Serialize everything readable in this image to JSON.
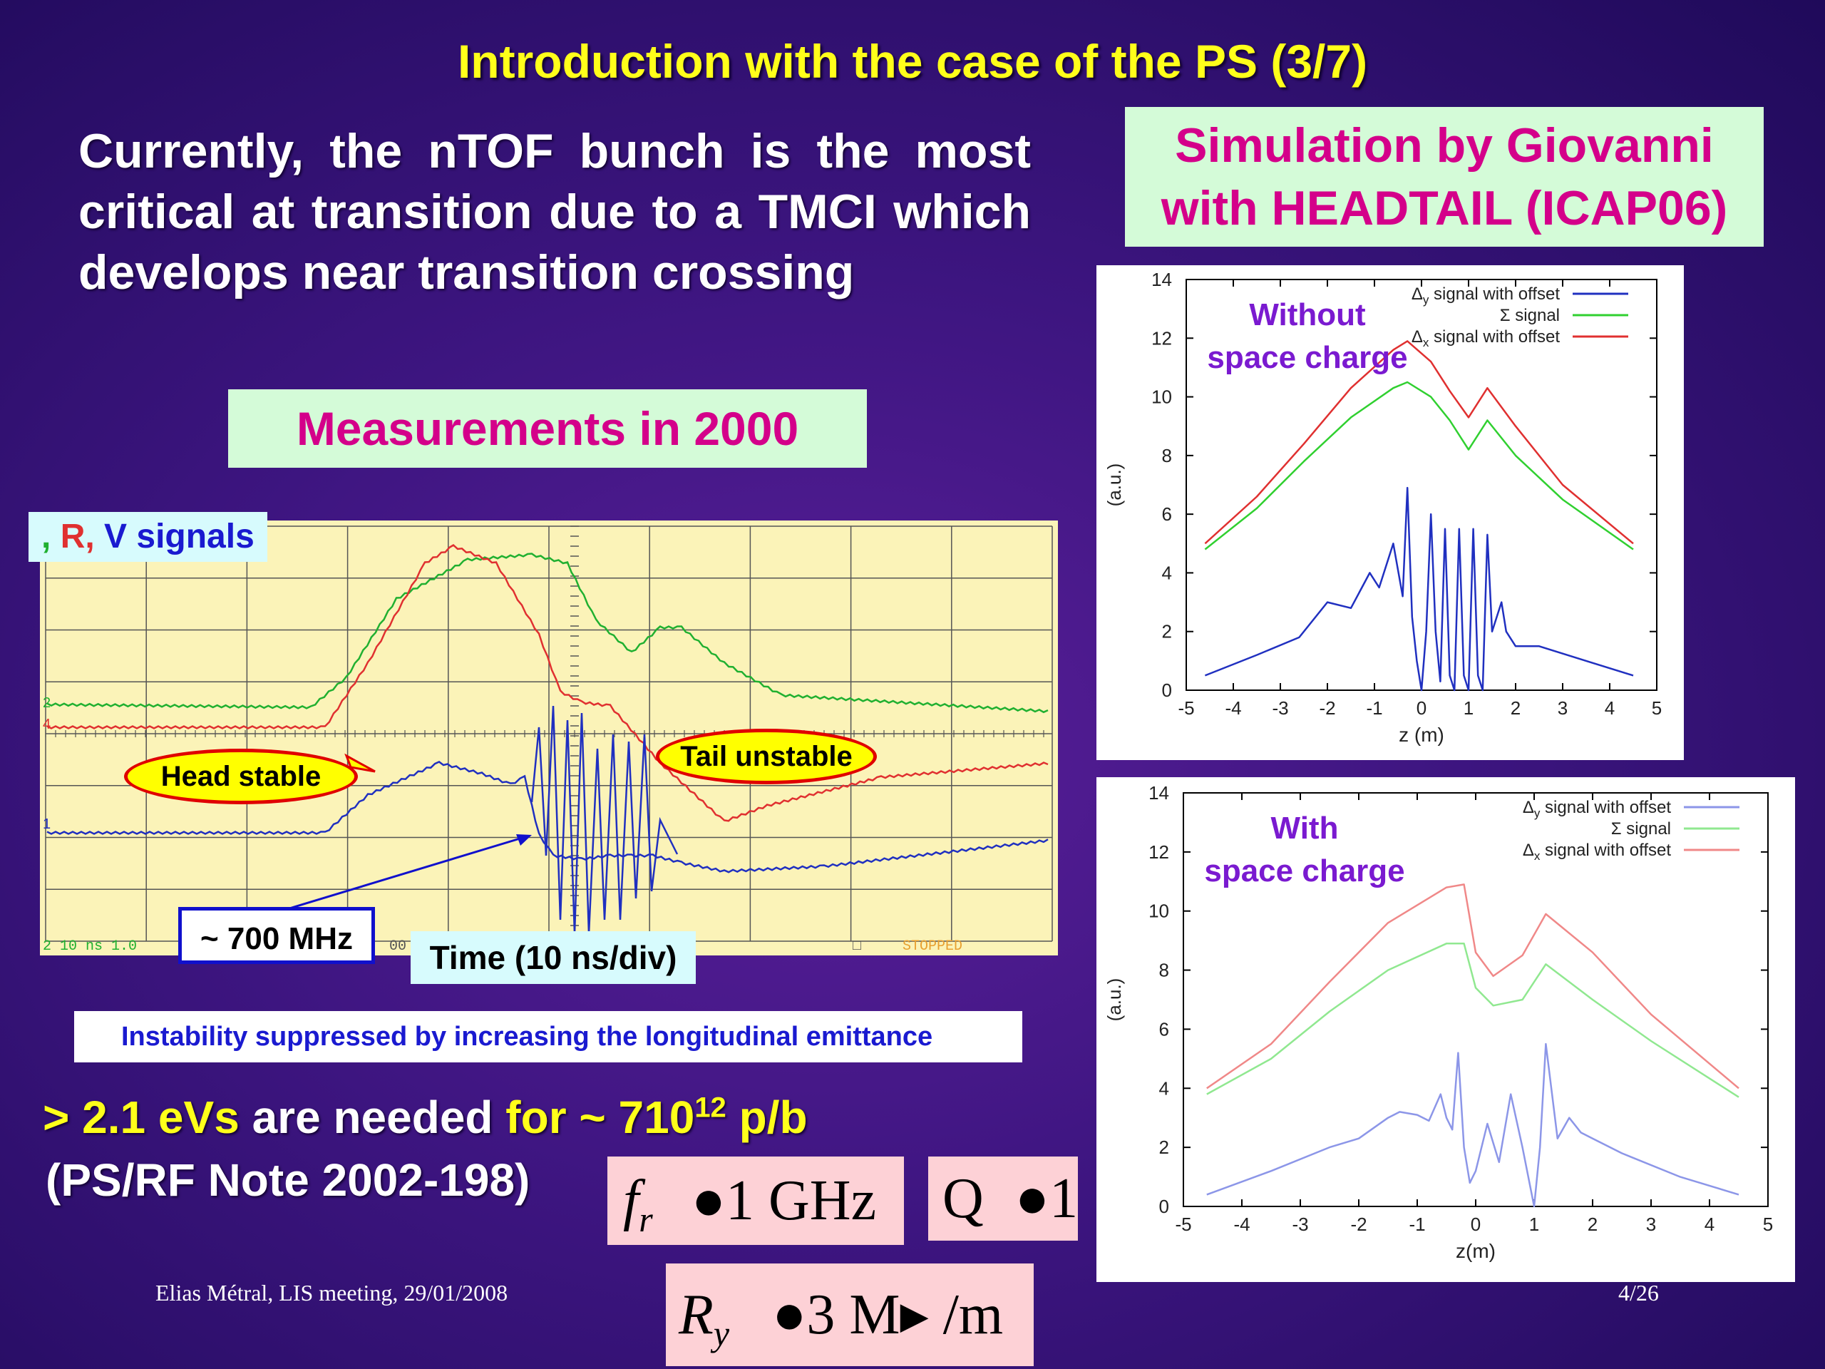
{
  "title": "Introduction with the case of the PS (3/7)",
  "intro": {
    "bullet": "",
    "text": "Currently, the nTOF bunch is the most critical at transition due to a TMCI which develops near transition crossing"
  },
  "measurements_label": "Measurements in 2000",
  "simulation_label": {
    "line1": "Simulation by Giovanni",
    "line2": "with HEADTAIL (ICAP06)"
  },
  "scope": {
    "signals_label": {
      "s1": "",
      "sep": ",",
      "s2": "",
      "r": "R,",
      "s3": "",
      "v": "V signals"
    },
    "channel_marks": {
      "ch2": "2",
      "ch4": "4",
      "ch1": "1"
    },
    "status_left": "2  10 ns  1.0",
    "status_mid": "00",
    "status_right": "STOPPED",
    "status_box": "□",
    "head_stable": "Head stable",
    "tail_unstable": "Tail unstable",
    "freq": "~ 700 MHz",
    "time": "Time (10 ns/div)",
    "colors": {
      "green": "#20b030",
      "red": "#e03030",
      "blue": "#2030c0",
      "grid": "#555555"
    }
  },
  "instability_note": {
    "bullet": "",
    "text": "Instability suppressed by increasing the longitudinal emittance"
  },
  "needed": {
    "bullet": "",
    "gt": ">",
    "value": "2.1 eVs",
    "mid": "are needed",
    "for": "for ~ 7",
    "x": "",
    "base": "10",
    "exp": "12",
    "unit": "p/b"
  },
  "reference": "(PS/RF Note 2002-198)",
  "formulas": {
    "f1": {
      "var": "f",
      "sub": "r",
      "rhs": "1 GHz"
    },
    "f2": {
      "var": "Q",
      "rhs": "1"
    },
    "f3": {
      "var": "R",
      "sub": "y",
      "rhs": "3 M",
      "unit": "/m"
    }
  },
  "footer": {
    "left": "Elias Métral, LIS meeting, 29/01/2008",
    "right": "4/26"
  },
  "chart_data": [
    {
      "type": "line",
      "overlay_label": "Without space charge",
      "overlay_lines": [
        "Without",
        "space charge"
      ],
      "xlabel": "z (m)",
      "ylabel": "(a.u.)",
      "xlim": [
        -5,
        5
      ],
      "ylim": [
        0,
        14
      ],
      "xticks": [
        "-5",
        "-4",
        "-3",
        "-2",
        "-1",
        "0",
        "1",
        "2",
        "3",
        "4",
        "5"
      ],
      "yticks": [
        "0",
        "2",
        "4",
        "6",
        "8",
        "10",
        "12",
        "14"
      ],
      "legend_position": "top-right",
      "series": [
        {
          "name": "Δy signal with offset",
          "legend_sym": "Δ",
          "legend_sub": "y",
          "legend_rest": "signal with offset",
          "color": "#2030c0",
          "x": [
            -4.6,
            -3.5,
            -2.6,
            -2.0,
            -1.5,
            -1.1,
            -0.9,
            -0.6,
            -0.4,
            -0.3,
            -0.2,
            -0.1,
            0.0,
            0.1,
            0.2,
            0.3,
            0.4,
            0.5,
            0.6,
            0.7,
            0.8,
            0.9,
            1.0,
            1.1,
            1.2,
            1.3,
            1.4,
            1.5,
            1.6,
            1.7,
            1.8,
            2.0,
            2.5,
            3.5,
            4.5
          ],
          "y": [
            0.5,
            1.2,
            1.8,
            3.0,
            2.8,
            4.0,
            3.5,
            5.0,
            3.2,
            6.9,
            2.5,
            1.0,
            0.0,
            2.0,
            6.0,
            2.0,
            0.3,
            5.5,
            0.5,
            0.0,
            5.5,
            0.5,
            0.0,
            5.5,
            0.5,
            0.0,
            5.3,
            2.0,
            2.5,
            3.0,
            2.0,
            1.5,
            1.5,
            1.0,
            0.5
          ]
        },
        {
          "name": "Σ signal",
          "legend_sym": "Σ",
          "legend_sub": "",
          "legend_rest": "signal",
          "color": "#30d030",
          "x": [
            -4.6,
            -3.5,
            -2.5,
            -1.5,
            -0.6,
            -0.3,
            0.2,
            0.6,
            1.0,
            1.4,
            2.0,
            3.0,
            4.5
          ],
          "y": [
            4.8,
            6.2,
            7.8,
            9.3,
            10.3,
            10.5,
            10.0,
            9.2,
            8.2,
            9.2,
            8.0,
            6.5,
            4.8
          ]
        },
        {
          "name": "Δx signal with offset",
          "legend_sym": "Δ",
          "legend_sub": "x",
          "legend_rest": "signal with offset",
          "color": "#e03030",
          "x": [
            -4.6,
            -3.5,
            -2.5,
            -1.5,
            -0.6,
            -0.3,
            0.2,
            0.6,
            1.0,
            1.4,
            2.0,
            3.0,
            4.5
          ],
          "y": [
            5.0,
            6.6,
            8.4,
            10.3,
            11.6,
            11.9,
            11.2,
            10.2,
            9.3,
            10.3,
            9.0,
            7.0,
            5.0
          ]
        }
      ]
    },
    {
      "type": "line",
      "overlay_label": "With space charge",
      "overlay_lines": [
        "With",
        "space charge"
      ],
      "xlabel": "z(m)",
      "ylabel": "(a.u.)",
      "xlim": [
        -5,
        5
      ],
      "ylim": [
        0,
        14
      ],
      "xticks": [
        "-5",
        "-4",
        "-3",
        "-2",
        "-1",
        "0",
        "1",
        "2",
        "3",
        "4",
        "5"
      ],
      "yticks": [
        "0",
        "2",
        "4",
        "6",
        "8",
        "10",
        "12",
        "14"
      ],
      "legend_position": "top-right",
      "series": [
        {
          "name": "Δy signal with offset",
          "legend_sym": "Δ",
          "legend_sub": "y",
          "legend_rest": "signal with offset",
          "color": "#8c96e8",
          "x": [
            -4.6,
            -3.5,
            -2.5,
            -2.0,
            -1.5,
            -1.3,
            -1.0,
            -0.8,
            -0.6,
            -0.5,
            -0.4,
            -0.3,
            -0.2,
            -0.1,
            0.0,
            0.2,
            0.4,
            0.6,
            0.8,
            1.0,
            1.1,
            1.2,
            1.4,
            1.6,
            1.8,
            2.0,
            2.5,
            3.5,
            4.5
          ],
          "y": [
            0.4,
            1.2,
            2.0,
            2.3,
            3.0,
            3.2,
            3.1,
            2.9,
            3.8,
            3.0,
            2.6,
            5.2,
            2.0,
            0.8,
            1.2,
            2.8,
            1.5,
            3.8,
            2.0,
            0.0,
            2.0,
            5.5,
            2.3,
            3.0,
            2.5,
            2.3,
            1.8,
            1.0,
            0.4
          ]
        },
        {
          "name": "Σ signal",
          "legend_sym": "Σ",
          "legend_sub": "",
          "legend_rest": "signal",
          "color": "#90e890",
          "x": [
            -4.6,
            -3.5,
            -2.5,
            -1.5,
            -0.5,
            -0.2,
            0.0,
            0.3,
            0.8,
            1.2,
            2.0,
            3.0,
            4.5
          ],
          "y": [
            3.8,
            5.0,
            6.6,
            8.0,
            8.9,
            8.9,
            7.4,
            6.8,
            7.0,
            8.2,
            7.0,
            5.6,
            3.7
          ]
        },
        {
          "name": "Δx signal with offset",
          "legend_sym": "Δ",
          "legend_sub": "x",
          "legend_rest": "signal with offset",
          "color": "#f08888",
          "x": [
            -4.6,
            -3.5,
            -2.5,
            -1.5,
            -0.5,
            -0.2,
            0.0,
            0.3,
            0.8,
            1.2,
            2.0,
            3.0,
            4.5
          ],
          "y": [
            4.0,
            5.5,
            7.6,
            9.6,
            10.8,
            10.9,
            8.6,
            7.8,
            8.5,
            9.9,
            8.6,
            6.5,
            4.0
          ]
        }
      ]
    }
  ]
}
